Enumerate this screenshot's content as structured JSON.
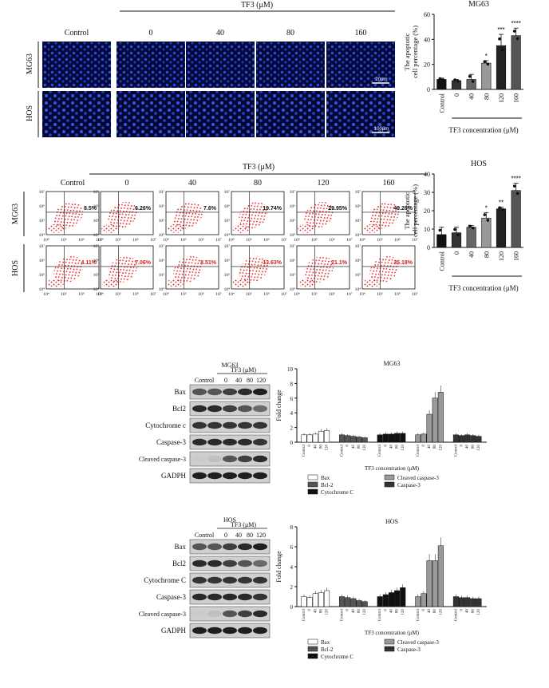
{
  "panelA": {
    "group_label": "TF3 (μM)",
    "columns": [
      "Control",
      "0",
      "40",
      "80",
      "160"
    ],
    "rows": [
      "MG63",
      "HOS"
    ],
    "scale_bars": [
      "20μm",
      "100μm"
    ]
  },
  "panelB": {
    "group_label": "TF3 (μM)",
    "columns": [
      "Control",
      "0",
      "40",
      "80",
      "120",
      "160"
    ],
    "rows": [
      "MG63",
      "HOS"
    ],
    "mg63_percents": [
      "8.5%",
      "6.26%",
      "7.6%",
      "19.74%",
      "29.95%",
      "49.26%"
    ],
    "hos_percents": [
      "4.11%",
      "7.06%",
      "8.51%",
      "13.63%",
      "21.1%",
      "35.18%"
    ],
    "axis_ticks": [
      "10⁴",
      "10⁵",
      "10⁶",
      "10⁷"
    ]
  },
  "panelC": {
    "title": "MG63",
    "group_label": "TF3 (μM)",
    "lanes": [
      "Control",
      "0",
      "40",
      "80",
      "120"
    ],
    "proteins": [
      "Bax",
      "Bcl2",
      "Cytochrome c",
      "Caspase-3",
      "Cleaved caspase-3",
      "GADPH"
    ]
  },
  "panelD": {
    "title": "HOS",
    "group_label": "TF3 (μM)",
    "lanes": [
      "Control",
      "0",
      "40",
      "80",
      "120"
    ],
    "proteins": [
      "Bax",
      "Bcl2",
      "Cytochrome C",
      "Caspase-3",
      "Cleaved caspase-3",
      "GADPH"
    ]
  },
  "chart_data": [
    {
      "type": "bar",
      "title": "MG63",
      "ylabel": "The apoptotic cell percentage (%)",
      "xlabel": "TF3 concentration (μM)",
      "categories": [
        "Control",
        "0",
        "40",
        "80",
        "120",
        "160"
      ],
      "values": [
        8,
        7,
        8,
        21,
        35,
        43
      ],
      "errors": [
        1,
        1,
        4,
        2,
        9,
        6
      ],
      "significance": [
        "",
        "",
        "",
        "*",
        "***",
        "****"
      ],
      "ylim": [
        0,
        60
      ],
      "yticks": [
        0,
        20,
        40,
        60
      ],
      "colors": [
        "#111111",
        "#333333",
        "#666666",
        "#999999",
        "#222222",
        "#555555"
      ]
    },
    {
      "type": "bar",
      "title": "HOS",
      "ylabel": "The apoptotic cell percentage (%)",
      "xlabel": "TF3 concentration (μM)",
      "categories": [
        "Control",
        "0",
        "40",
        "80",
        "120",
        "160"
      ],
      "values": [
        7,
        8,
        11,
        16,
        21,
        31
      ],
      "errors": [
        4,
        3,
        1,
        3,
        1,
        4
      ],
      "significance": [
        "",
        "",
        "",
        "*",
        "**",
        "****"
      ],
      "ylim": [
        0,
        40
      ],
      "yticks": [
        0,
        10,
        20,
        30,
        40
      ],
      "colors": [
        "#111111",
        "#333333",
        "#666666",
        "#999999",
        "#222222",
        "#555555"
      ]
    },
    {
      "type": "bar",
      "title": "MG63",
      "ylabel": "Fold change",
      "xlabel": "TF3 concentration (μM)",
      "categories": [
        "Control",
        "0",
        "40",
        "80",
        "120"
      ],
      "ylim": [
        0,
        10
      ],
      "yticks": [
        0,
        2,
        4,
        6,
        8,
        10
      ],
      "series": [
        {
          "name": "Bax",
          "values": [
            1.0,
            1.0,
            1.1,
            1.5,
            1.6
          ],
          "color": "#ffffff"
        },
        {
          "name": "Bcl-2",
          "values": [
            1.0,
            0.9,
            0.8,
            0.7,
            0.6
          ],
          "color": "#555555"
        },
        {
          "name": "Cytochrome C",
          "values": [
            1.0,
            1.1,
            1.1,
            1.2,
            1.2
          ],
          "color": "#111111"
        },
        {
          "name": "Cleaved caspase-3",
          "values": [
            1.0,
            1.1,
            3.8,
            6.0,
            6.8
          ],
          "color": "#999999"
        },
        {
          "name": "Caspase-3",
          "values": [
            1.0,
            0.9,
            1.0,
            0.9,
            0.8
          ],
          "color": "#333333"
        }
      ]
    },
    {
      "type": "bar",
      "title": "HOS",
      "ylabel": "Fold change",
      "xlabel": "TF3 concentration (μM)",
      "categories": [
        "Control",
        "0",
        "40",
        "80",
        "120"
      ],
      "ylim": [
        0,
        8
      ],
      "yticks": [
        0,
        2,
        4,
        6,
        8
      ],
      "series": [
        {
          "name": "Bax",
          "values": [
            1.0,
            0.9,
            1.3,
            1.4,
            1.6
          ],
          "color": "#ffffff"
        },
        {
          "name": "Bcl-2",
          "values": [
            1.0,
            0.9,
            0.8,
            0.6,
            0.5
          ],
          "color": "#555555"
        },
        {
          "name": "Cytochrome C",
          "values": [
            1.0,
            1.2,
            1.4,
            1.6,
            1.9
          ],
          "color": "#111111"
        },
        {
          "name": "Cleaved caspase-3",
          "values": [
            1.0,
            1.3,
            4.6,
            4.6,
            6.1
          ],
          "color": "#999999"
        },
        {
          "name": "Caspase-3",
          "values": [
            1.0,
            0.9,
            0.9,
            0.8,
            0.8
          ],
          "color": "#333333"
        }
      ]
    }
  ]
}
